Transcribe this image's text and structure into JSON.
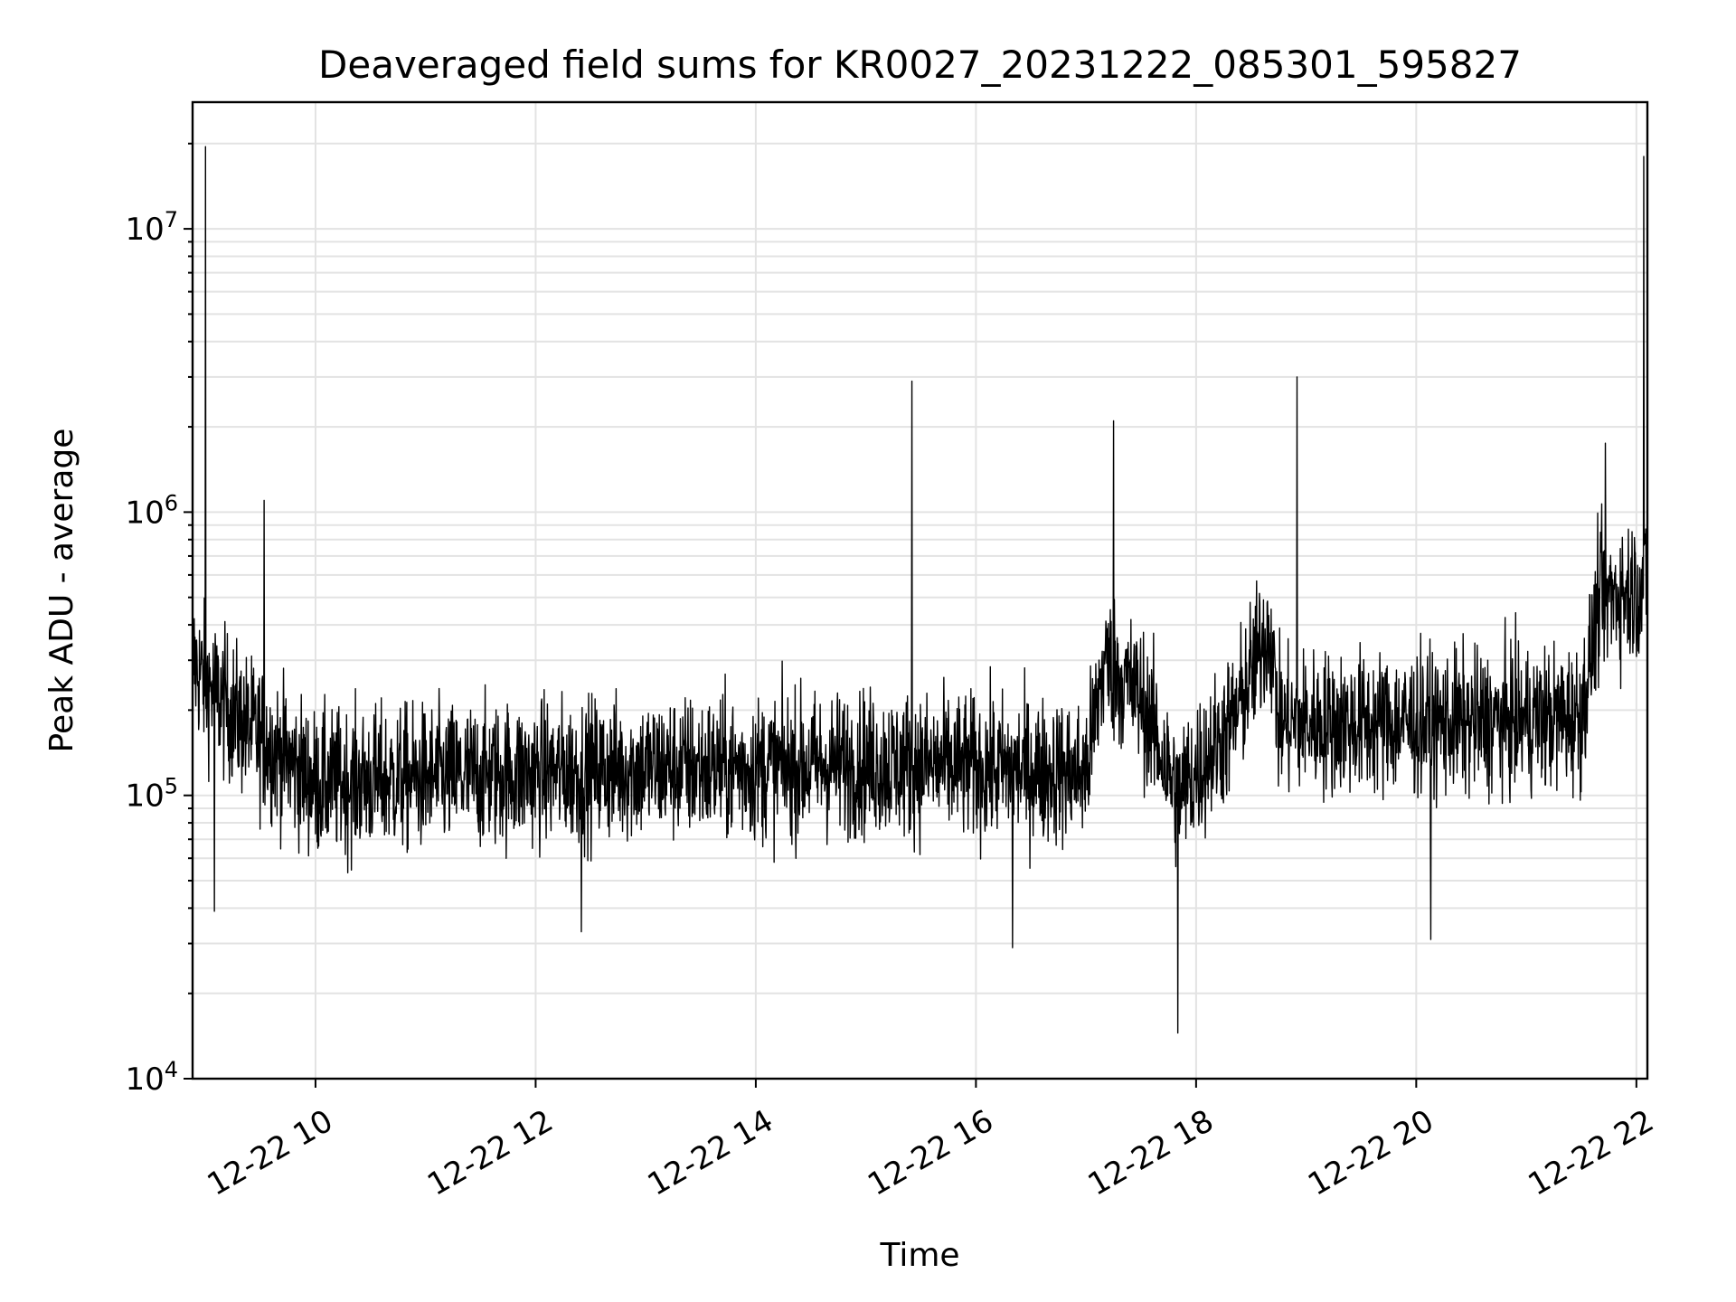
{
  "chart_data": {
    "type": "line",
    "title": "Deaveraged field sums for KR0027_20231222_085301_595827",
    "xlabel": "Time",
    "ylabel": "Peak ADU - average",
    "y_scale": "log",
    "ylim": [
      10000,
      28000000
    ],
    "xlim": [
      "2023-12-22 08:53",
      "2023-12-22 22:06"
    ],
    "x_tick_labels": [
      "12-22 10",
      "12-22 12",
      "12-22 14",
      "12-22 16",
      "12-22 18",
      "12-22 20",
      "12-22 22"
    ],
    "x_ticks": [
      "2023-12-22 10:00",
      "2023-12-22 12:00",
      "2023-12-22 14:00",
      "2023-12-22 16:00",
      "2023-12-22 18:00",
      "2023-12-22 20:00",
      "2023-12-22 22:00"
    ],
    "y_tick_labels": [
      {
        "base": "10",
        "exp": "4",
        "value": 10000
      },
      {
        "base": "10",
        "exp": "5",
        "value": 100000
      },
      {
        "base": "10",
        "exp": "6",
        "value": 1000000
      },
      {
        "base": "10",
        "exp": "7",
        "value": 10000000
      }
    ],
    "grid": true,
    "line_color": "#000000",
    "series": [
      {
        "baseline": [
          [
            "2023-12-22 08:53",
            300000
          ],
          [
            "2023-12-22 09:00",
            250000
          ],
          [
            "2023-12-22 09:20",
            180000
          ],
          [
            "2023-12-22 10:00",
            110000
          ],
          [
            "2023-12-22 11:00",
            115000
          ],
          [
            "2023-12-22 12:00",
            120000
          ],
          [
            "2023-12-22 13:00",
            125000
          ],
          [
            "2023-12-22 14:00",
            125000
          ],
          [
            "2023-12-22 15:00",
            130000
          ],
          [
            "2023-12-22 16:00",
            125000
          ],
          [
            "2023-12-22 17:00",
            120000
          ],
          [
            "2023-12-22 17:10",
            300000
          ],
          [
            "2023-12-22 17:30",
            220000
          ],
          [
            "2023-12-22 17:50",
            100000
          ],
          [
            "2023-12-22 18:20",
            180000
          ],
          [
            "2023-12-22 18:40",
            400000
          ],
          [
            "2023-12-22 18:45",
            180000
          ],
          [
            "2023-12-22 19:30",
            180000
          ],
          [
            "2023-12-22 20:30",
            180000
          ],
          [
            "2023-12-22 21:30",
            190000
          ],
          [
            "2023-12-22 21:40",
            500000
          ],
          [
            "2023-12-22 22:06",
            550000
          ]
        ],
        "spikes": [
          [
            "2023-12-22 09:00",
            19500000
          ],
          [
            "2023-12-22 09:32",
            1100000
          ],
          [
            "2023-12-22 15:25",
            2900000
          ],
          [
            "2023-12-22 17:15",
            2100000
          ],
          [
            "2023-12-22 18:55",
            3000000
          ],
          [
            "2023-12-22 22:04",
            18000000
          ],
          [
            "2023-12-22 21:43",
            1750000
          ]
        ],
        "dips": [
          [
            "2023-12-22 17:50",
            14500
          ],
          [
            "2023-12-22 16:20",
            29000
          ],
          [
            "2023-12-22 12:25",
            33000
          ],
          [
            "2023-12-22 20:08",
            31000
          ],
          [
            "2023-12-22 09:05",
            39000
          ]
        ]
      }
    ]
  }
}
